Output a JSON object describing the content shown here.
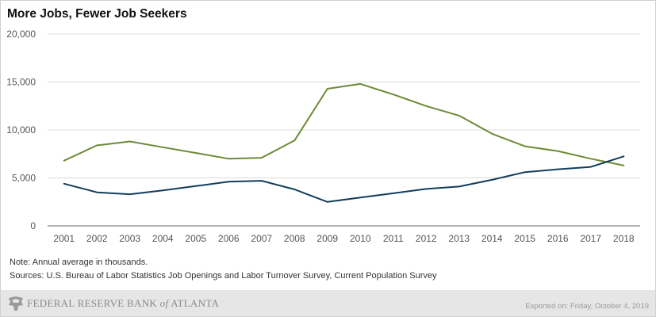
{
  "chart_data": {
    "type": "line",
    "title": "More Jobs, Fewer Job Seekers",
    "categories": [
      "2001",
      "2002",
      "2003",
      "2004",
      "2005",
      "2006",
      "2007",
      "2008",
      "2009",
      "2010",
      "2011",
      "2012",
      "2013",
      "2014",
      "2015",
      "2016",
      "2017",
      "2018"
    ],
    "y_ticks": [
      "0",
      "5,000",
      "10,000",
      "15,000",
      "20,000"
    ],
    "ylim": [
      0,
      20000
    ],
    "grid": true,
    "series": [
      {
        "color": "#6d8a36",
        "values": [
          6800,
          8400,
          8800,
          8200,
          7600,
          7000,
          7100,
          8900,
          14300,
          14800,
          13700,
          12500,
          11500,
          9600,
          8300,
          7800,
          7000,
          6300
        ]
      },
      {
        "color": "#123d5a",
        "values": [
          4400,
          3500,
          3300,
          3700,
          4150,
          4600,
          4700,
          3800,
          2500,
          2950,
          3400,
          3850,
          4100,
          4800,
          5600,
          5900,
          6150,
          7250
        ]
      }
    ]
  },
  "notes": {
    "note": "Note: Annual average in thousands.",
    "sources": "Sources: U.S. Bureau of Labor Statistics Job Openings and Labor Turnover Survey, Current Population Survey"
  },
  "footer": {
    "logo_text_main": "FEDERAL RESERVE BANK ",
    "logo_text_of": "of",
    "logo_text_end": " ATLANTA",
    "exported": "Exported on: Friday, October 4, 2019"
  }
}
